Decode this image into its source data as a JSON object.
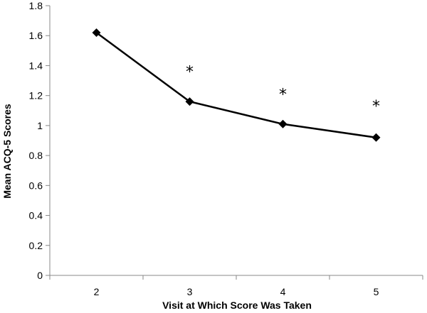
{
  "chart_data": {
    "type": "line",
    "title": "",
    "xlabel": "Visit at Which Score Was Taken",
    "ylabel": "Mean ACQ-5 Scores",
    "categories": [
      "2",
      "3",
      "4",
      "5"
    ],
    "series": [
      {
        "values": [
          1.62,
          1.16,
          1.01,
          0.92
        ],
        "marker": "diamond",
        "color": "#000000"
      }
    ],
    "ylim": [
      0,
      1.8
    ],
    "yticks": [
      "0",
      "0.2",
      "0.4",
      "0.6",
      "0.8",
      "1",
      "1.2",
      "1.4",
      "1.6",
      "1.8"
    ],
    "annotations": [
      {
        "category": "3",
        "y": 1.38,
        "text": "*"
      },
      {
        "category": "4",
        "y": 1.23,
        "text": "*"
      },
      {
        "category": "5",
        "y": 1.15,
        "text": "*"
      }
    ],
    "grid": false,
    "legend": "none"
  }
}
